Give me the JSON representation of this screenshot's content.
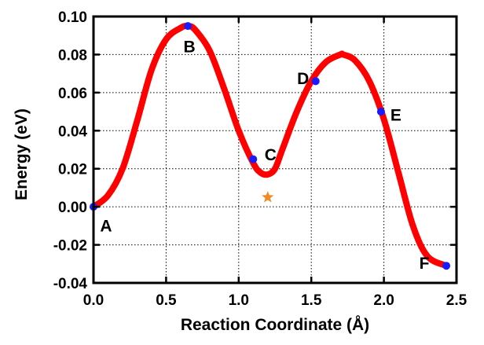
{
  "chart_data": {
    "type": "line",
    "title": "",
    "xlabel": "Reaction Coordinate (Å)",
    "ylabel": "Energy (eV)",
    "xlim": [
      0.0,
      2.5
    ],
    "ylim": [
      -0.04,
      0.1
    ],
    "x_ticks": [
      "0.0",
      "0.5",
      "1.0",
      "1.5",
      "2.0",
      "2.5"
    ],
    "y_ticks": [
      "0.10",
      "0.08",
      "0.06",
      "0.04",
      "0.02",
      "0.00",
      "-0.02",
      "-0.04"
    ],
    "grid": true,
    "curve_color": "#ff0000",
    "point_color": "#1a1aff",
    "marker_color": "#f08c28",
    "series": [
      {
        "x": [
          0.0,
          0.1,
          0.2,
          0.3,
          0.4,
          0.5,
          0.6,
          0.65,
          0.7,
          0.8,
          0.9,
          1.0,
          1.1,
          1.15,
          1.2,
          1.25,
          1.3,
          1.4,
          1.5,
          1.6,
          1.7,
          1.72,
          1.8,
          1.9,
          2.0,
          2.1,
          2.2,
          2.3,
          2.43
        ],
        "y": [
          0.0,
          0.006,
          0.02,
          0.045,
          0.072,
          0.088,
          0.094,
          0.095,
          0.093,
          0.082,
          0.062,
          0.04,
          0.023,
          0.018,
          0.017,
          0.02,
          0.03,
          0.05,
          0.066,
          0.076,
          0.08,
          0.08,
          0.077,
          0.066,
          0.046,
          0.018,
          -0.01,
          -0.026,
          -0.031
        ]
      }
    ],
    "points": [
      {
        "label": "A",
        "x": 0.0,
        "y": 0.0
      },
      {
        "label": "B",
        "x": 0.65,
        "y": 0.095
      },
      {
        "label": "C",
        "x": 1.1,
        "y": 0.025
      },
      {
        "label": "D",
        "x": 1.53,
        "y": 0.066
      },
      {
        "label": "E",
        "x": 1.98,
        "y": 0.05
      },
      {
        "label": "F",
        "x": 2.43,
        "y": -0.031
      }
    ],
    "star_marker": {
      "x": 1.2,
      "y": 0.005
    }
  }
}
